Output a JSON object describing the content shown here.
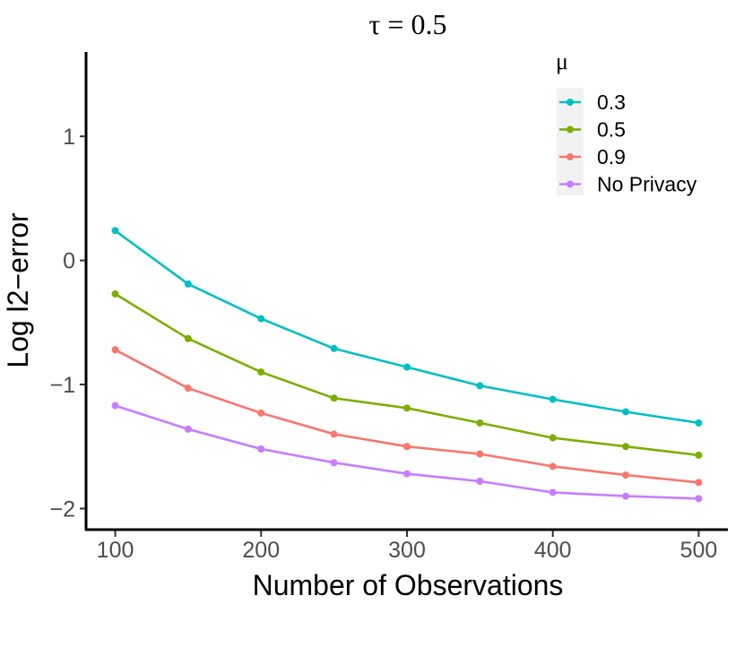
{
  "chart_data": {
    "type": "line",
    "title": "τ = 0.5",
    "xlabel": "Number of Observations",
    "ylabel": "Log l2−error",
    "x": [
      100,
      150,
      200,
      250,
      300,
      350,
      400,
      450,
      500
    ],
    "xlim": [
      80,
      520
    ],
    "ylim": [
      -2.17,
      1.68
    ],
    "xticks": [
      100,
      200,
      300,
      400,
      500
    ],
    "xtick_labels": [
      "100",
      "200",
      "300",
      "400",
      "500"
    ],
    "yticks": [
      1,
      0,
      -1,
      -2
    ],
    "ytick_labels": [
      "1",
      "0",
      "−1",
      "−2"
    ],
    "grid": false,
    "legend_title": "μ",
    "legend_position": "top-right",
    "series": [
      {
        "name": "0.3",
        "color": "#00BFC4",
        "values": [
          0.24,
          -0.19,
          -0.47,
          -0.71,
          -0.86,
          -1.01,
          -1.12,
          -1.22,
          -1.31
        ]
      },
      {
        "name": "0.5",
        "color": "#7CAE00",
        "values": [
          -0.27,
          -0.63,
          -0.9,
          -1.11,
          -1.19,
          -1.31,
          -1.43,
          -1.5,
          -1.57
        ]
      },
      {
        "name": "0.9",
        "color": "#F8766D",
        "values": [
          -0.72,
          -1.03,
          -1.23,
          -1.4,
          -1.5,
          -1.56,
          -1.66,
          -1.73,
          -1.79
        ]
      },
      {
        "name": "No Privacy",
        "color": "#C77CFF",
        "values": [
          -1.17,
          -1.36,
          -1.52,
          -1.63,
          -1.72,
          -1.78,
          -1.87,
          -1.9,
          -1.92
        ]
      }
    ]
  }
}
